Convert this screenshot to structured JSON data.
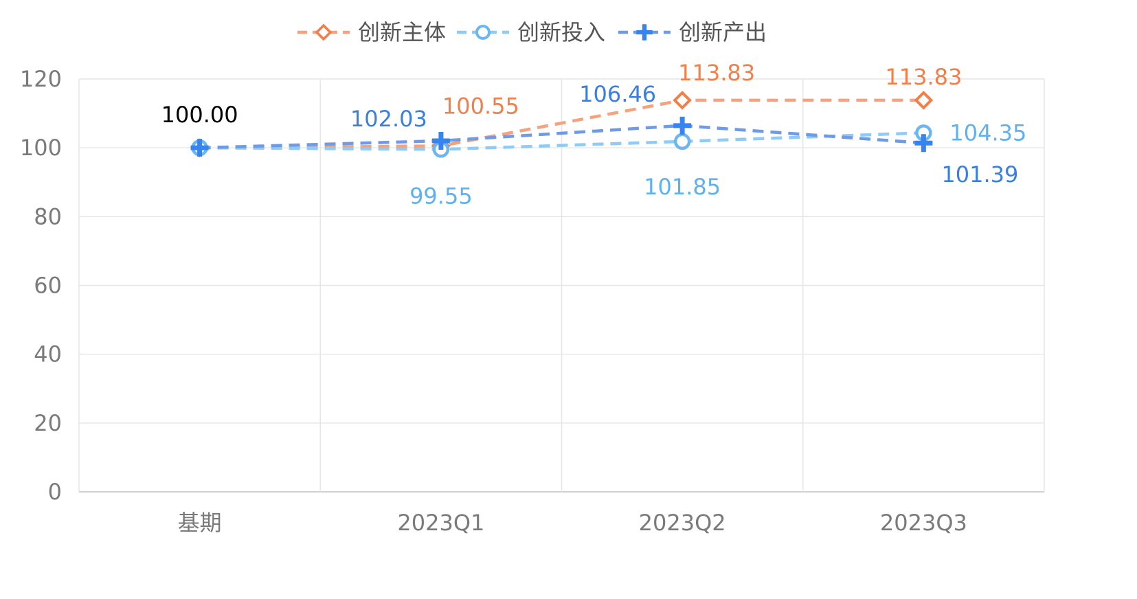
{
  "chart_data": {
    "type": "line",
    "categories": [
      "基期",
      "2023Q1",
      "2023Q2",
      "2023Q3"
    ],
    "ylim": [
      0,
      120
    ],
    "yticks": [
      0,
      20,
      40,
      60,
      80,
      100,
      120
    ],
    "grid": true,
    "legend_position": "top-center",
    "series": [
      {
        "name": "创新主体",
        "values": [
          100.0,
          100.55,
          113.83,
          113.83
        ],
        "labels": [
          "",
          "100.55",
          "113.83",
          "113.83"
        ],
        "line_color": "#f5a27e",
        "marker_color": "#f07f4a",
        "label_color": "#f07f4a",
        "marker": "diamond-open",
        "dash": "dashed"
      },
      {
        "name": "创新投入",
        "values": [
          100.0,
          99.55,
          101.85,
          104.35
        ],
        "labels": [
          "",
          "99.55",
          "101.85",
          "104.35"
        ],
        "line_color": "#8ecbf6",
        "marker_color": "#6db7f0",
        "label_color": "#5eb0ee",
        "marker": "circle-open",
        "dash": "dashed"
      },
      {
        "name": "创新产出",
        "values": [
          100.0,
          102.03,
          106.46,
          101.39
        ],
        "labels": [
          "100.00",
          "102.03",
          "106.46",
          "101.39"
        ],
        "line_color": "#6f9ae8",
        "marker_color": "#3584f0",
        "label_color": "#3a7fe0",
        "marker": "plus",
        "dash": "dashed"
      }
    ],
    "first_label_color": "#000000"
  }
}
